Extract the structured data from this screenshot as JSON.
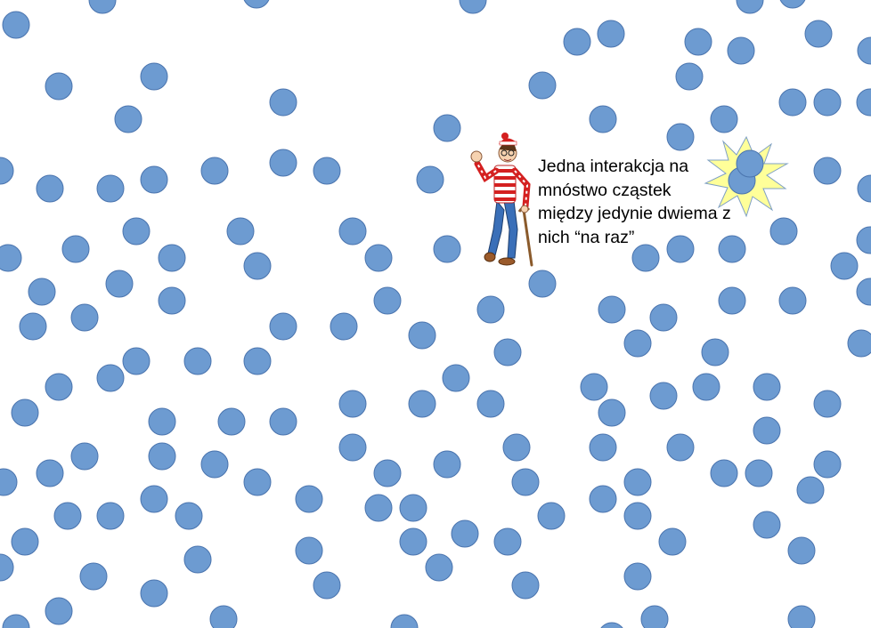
{
  "colors": {
    "background": "#ffffff",
    "particle_fill": "#6d9bd1",
    "particle_stroke": "#4a74ae",
    "burst_fill": "#ffff99",
    "burst_stroke": "#7fa0c4",
    "caption_text": "#000000"
  },
  "figure": {
    "icon": "wally-character-icon",
    "burst_icon": "collision-burst-icon"
  },
  "caption": {
    "line1": "Jedna interakcja na",
    "line2": "mnóstwo cząstek",
    "line3": "między jedynie dwiema z",
    "line4": "nich “na raz”"
  }
}
